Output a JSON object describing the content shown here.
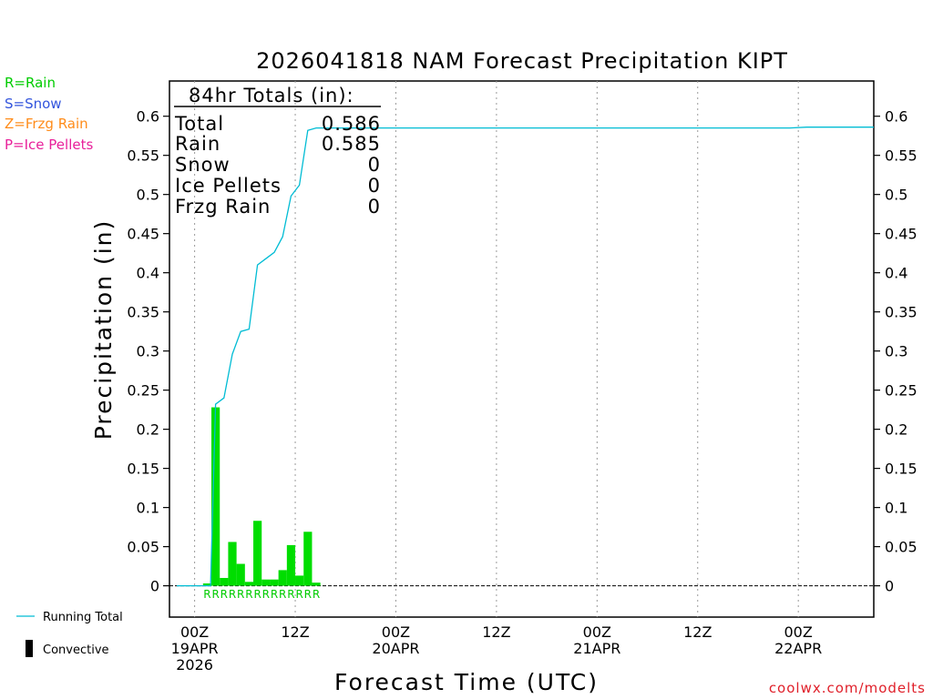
{
  "chart_data": {
    "type": "bar",
    "title": "2026041818 NAM Forecast Precipitation KIPT",
    "xlabel": "Forecast Time (UTC)",
    "ylabel": "Precipitation (in)",
    "ylim": [
      -0.04,
      0.645
    ],
    "xlim": [
      -3,
      81
    ],
    "y_ticks": [
      "0",
      "0.05",
      "0.1",
      "0.15",
      "0.2",
      "0.25",
      "0.3",
      "0.35",
      "0.4",
      "0.45",
      "0.5",
      "0.55",
      "0.6"
    ],
    "x_ticks": [
      {
        "hour": 0,
        "line1": "00Z",
        "line2": "19APR",
        "line3": "2026"
      },
      {
        "hour": 12,
        "line1": "12Z",
        "line2": "",
        "line3": ""
      },
      {
        "hour": 24,
        "line1": "00Z",
        "line2": "20APR",
        "line3": ""
      },
      {
        "hour": 36,
        "line1": "12Z",
        "line2": "",
        "line3": ""
      },
      {
        "hour": 48,
        "line1": "00Z",
        "line2": "21APR",
        "line3": ""
      },
      {
        "hour": 60,
        "line1": "12Z",
        "line2": "",
        "line3": ""
      },
      {
        "hour": 72,
        "line1": "00Z",
        "line2": "22APR",
        "line3": ""
      }
    ],
    "bars": {
      "name": "Convective",
      "color": "#00dd00",
      "hours": [
        1.5,
        2.5,
        3.5,
        4.5,
        5.5,
        6.5,
        7.5,
        8.5,
        9.5,
        10.5,
        11.5,
        12.5,
        13.5,
        14.5
      ],
      "values": [
        0.003,
        0.228,
        0.01,
        0.056,
        0.028,
        0.005,
        0.083,
        0.008,
        0.008,
        0.02,
        0.052,
        0.013,
        0.069,
        0.004
      ]
    },
    "precip_types": {
      "hours": [
        1.5,
        2.5,
        3.5,
        4.5,
        5.5,
        6.5,
        7.5,
        8.5,
        9.5,
        10.5,
        11.5,
        12.5,
        13.5,
        14.5
      ],
      "codes": [
        "R",
        "R",
        "R",
        "R",
        "R",
        "R",
        "R",
        "R",
        "R",
        "R",
        "R",
        "R",
        "R",
        "R"
      ]
    },
    "running_total": {
      "name": "Running Total",
      "color": "#00bcd4",
      "points": [
        [
          -5,
          0
        ],
        [
          1.9,
          0.0
        ],
        [
          2.5,
          0.232
        ],
        [
          3.5,
          0.24
        ],
        [
          4.5,
          0.296
        ],
        [
          5.5,
          0.325
        ],
        [
          6.5,
          0.328
        ],
        [
          7.5,
          0.41
        ],
        [
          8.5,
          0.418
        ],
        [
          9.5,
          0.426
        ],
        [
          10.5,
          0.446
        ],
        [
          11.5,
          0.498
        ],
        [
          12.5,
          0.512
        ],
        [
          13.5,
          0.582
        ],
        [
          14.5,
          0.585
        ],
        [
          71,
          0.585
        ],
        [
          73,
          0.586
        ],
        [
          82,
          0.586
        ]
      ]
    },
    "totals_box": {
      "header": "84hr Totals (in):",
      "rows": [
        {
          "label": "Total",
          "value": "0.586"
        },
        {
          "label": "Rain",
          "value": "0.585"
        },
        {
          "label": "Snow",
          "value": "0"
        },
        {
          "label": "Ice Pellets",
          "value": "0"
        },
        {
          "label": "Frzg Rain",
          "value": "0"
        }
      ]
    },
    "key": [
      {
        "text": "R=Rain",
        "color": "#00cc00"
      },
      {
        "text": "S=Snow",
        "color": "#3355dd"
      },
      {
        "text": "Z=Frzg Rain",
        "color": "#ff8c1a"
      },
      {
        "text": "P=Ice Pellets",
        "color": "#e8209a"
      }
    ],
    "legend": {
      "running_total_label": "Running Total",
      "convective_label": "Convective"
    },
    "credit": "coolwx.com/modelts"
  }
}
